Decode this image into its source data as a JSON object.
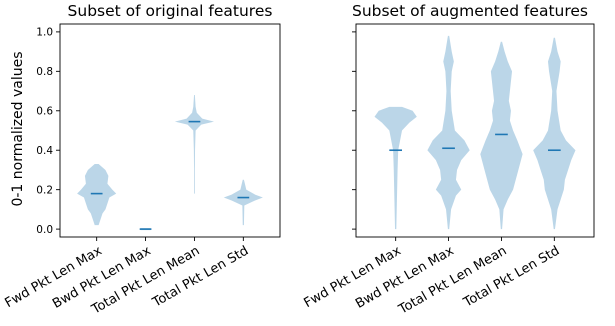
{
  "figure": {
    "ylabel": "0-1 normalized values"
  },
  "colors": {
    "violin": "#1f77b4",
    "mean_line": "#1f77b4"
  },
  "chart_data": [
    {
      "type": "violin",
      "title": "Subset of original features",
      "ylabel": "0-1 normalized values",
      "xlabel": "",
      "ylim": [
        -0.04,
        1.04
      ],
      "yticks": [
        "0.0",
        "0.2",
        "0.4",
        "0.6",
        "0.8",
        "1.0"
      ],
      "grid": false,
      "categories": [
        "Fwd Pkt Len Max",
        "Bwd Pkt Len Max",
        "Total Pkt Len Mean",
        "Total Pkt Len Std"
      ],
      "series": [
        {
          "mean": 0.18,
          "density": [
            [
              0.02,
              0.1
            ],
            [
              0.05,
              0.2
            ],
            [
              0.08,
              0.3
            ],
            [
              0.1,
              0.45
            ],
            [
              0.13,
              0.55
            ],
            [
              0.16,
              0.65
            ],
            [
              0.18,
              1.0
            ],
            [
              0.2,
              0.8
            ],
            [
              0.23,
              0.55
            ],
            [
              0.27,
              0.6
            ],
            [
              0.3,
              0.45
            ],
            [
              0.33,
              0.1
            ]
          ]
        },
        {
          "mean": 0.0,
          "density": [
            [
              -0.005,
              0.25
            ],
            [
              0.0,
              0.3
            ],
            [
              0.005,
              0.25
            ]
          ]
        },
        {
          "mean": 0.545,
          "density": [
            [
              0.18,
              0.02
            ],
            [
              0.3,
              0.02
            ],
            [
              0.4,
              0.03
            ],
            [
              0.5,
              0.06
            ],
            [
              0.53,
              0.35
            ],
            [
              0.545,
              1.0
            ],
            [
              0.56,
              0.4
            ],
            [
              0.59,
              0.12
            ],
            [
              0.62,
              0.06
            ],
            [
              0.68,
              0.02
            ]
          ]
        },
        {
          "mean": 0.16,
          "density": [
            [
              0.02,
              0.03
            ],
            [
              0.12,
              0.05
            ],
            [
              0.145,
              0.6
            ],
            [
              0.16,
              1.0
            ],
            [
              0.175,
              0.6
            ],
            [
              0.2,
              0.15
            ],
            [
              0.23,
              0.08
            ],
            [
              0.25,
              0.03
            ]
          ]
        }
      ]
    },
    {
      "type": "violin",
      "title": "Subset of augmented features",
      "xlabel": "",
      "ylabel": "",
      "ylim": [
        -0.04,
        1.04
      ],
      "yticks": [
        "0.0",
        "0.2",
        "0.4",
        "0.6",
        "0.8",
        "1.0"
      ],
      "grid": false,
      "categories": [
        "Fwd Pkt Len Max",
        "Bwd Pkt Len Max",
        "Total Pkt Len Mean",
        "Total Pkt Len Std"
      ],
      "series": [
        {
          "mean": 0.4,
          "density": [
            [
              0.0,
              0.03
            ],
            [
              0.1,
              0.05
            ],
            [
              0.2,
              0.07
            ],
            [
              0.3,
              0.09
            ],
            [
              0.4,
              0.12
            ],
            [
              0.5,
              0.3
            ],
            [
              0.54,
              0.65
            ],
            [
              0.57,
              1.0
            ],
            [
              0.6,
              0.8
            ],
            [
              0.62,
              0.3
            ]
          ]
        },
        {
          "mean": 0.41,
          "density": [
            [
              0.0,
              0.03
            ],
            [
              0.1,
              0.12
            ],
            [
              0.17,
              0.35
            ],
            [
              0.2,
              0.6
            ],
            [
              0.25,
              0.35
            ],
            [
              0.3,
              0.4
            ],
            [
              0.35,
              0.6
            ],
            [
              0.4,
              1.0
            ],
            [
              0.45,
              0.75
            ],
            [
              0.5,
              0.3
            ],
            [
              0.6,
              0.15
            ],
            [
              0.7,
              0.1
            ],
            [
              0.8,
              0.15
            ],
            [
              0.85,
              0.25
            ],
            [
              0.9,
              0.15
            ],
            [
              0.98,
              0.03
            ]
          ]
        },
        {
          "mean": 0.48,
          "density": [
            [
              0.0,
              0.03
            ],
            [
              0.1,
              0.1
            ],
            [
              0.15,
              0.3
            ],
            [
              0.2,
              0.55
            ],
            [
              0.3,
              0.8
            ],
            [
              0.38,
              1.0
            ],
            [
              0.45,
              0.75
            ],
            [
              0.5,
              0.55
            ],
            [
              0.55,
              0.4
            ],
            [
              0.6,
              0.45
            ],
            [
              0.65,
              0.35
            ],
            [
              0.7,
              0.4
            ],
            [
              0.8,
              0.5
            ],
            [
              0.85,
              0.3
            ],
            [
              0.9,
              0.15
            ],
            [
              0.95,
              0.03
            ]
          ]
        },
        {
          "mean": 0.4,
          "density": [
            [
              0.0,
              0.03
            ],
            [
              0.1,
              0.15
            ],
            [
              0.2,
              0.45
            ],
            [
              0.25,
              0.5
            ],
            [
              0.3,
              0.65
            ],
            [
              0.35,
              0.8
            ],
            [
              0.4,
              1.0
            ],
            [
              0.45,
              0.55
            ],
            [
              0.5,
              0.3
            ],
            [
              0.6,
              0.15
            ],
            [
              0.7,
              0.1
            ],
            [
              0.8,
              0.25
            ],
            [
              0.85,
              0.3
            ],
            [
              0.9,
              0.15
            ],
            [
              0.97,
              0.03
            ]
          ]
        }
      ]
    }
  ]
}
